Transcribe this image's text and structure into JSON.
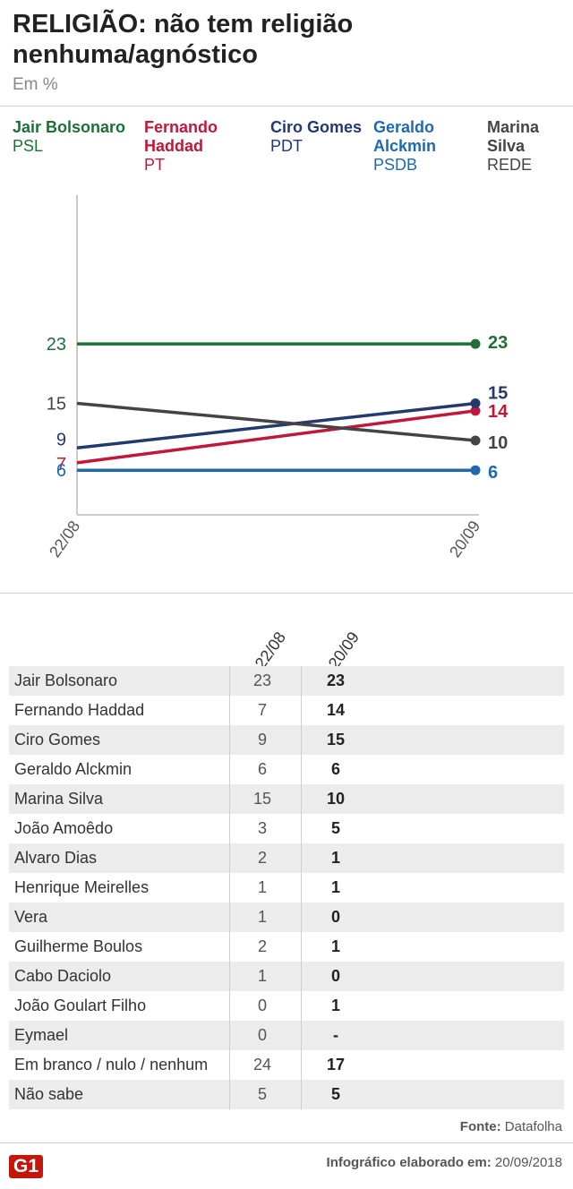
{
  "header": {
    "title": "RELIGIÃO: não tem religião nenhuma/agnóstico",
    "subtitle": "Em %"
  },
  "legend": [
    {
      "name": "Jair Bolsonaro",
      "party": "PSL",
      "color": "#1f6e35"
    },
    {
      "name": "Fernando Haddad",
      "party": "PT",
      "color": "#c0183a"
    },
    {
      "name": "Ciro Gomes",
      "party": "PDT",
      "color": "#223a70"
    },
    {
      "name": "Geraldo Alckmin",
      "party": "PSDB",
      "color": "#1f69b3"
    },
    {
      "name": "Marina Silva",
      "party": "REDE",
      "color": "#444444"
    }
  ],
  "chart_data": {
    "type": "line",
    "title": "RELIGIÃO: não tem religião nenhuma/agnóstico",
    "ylabel": "Em %",
    "x": [
      "22/08",
      "20/09"
    ],
    "ylim": [
      0,
      40
    ],
    "grid": false,
    "series": [
      {
        "name": "Jair Bolsonaro",
        "values": [
          23,
          23
        ],
        "color": "#1f6e35"
      },
      {
        "name": "Fernando Haddad",
        "values": [
          7,
          14
        ],
        "color": "#c0183a"
      },
      {
        "name": "Ciro Gomes",
        "values": [
          9,
          15
        ],
        "color": "#223a70"
      },
      {
        "name": "Geraldo Alckmin",
        "values": [
          6,
          6
        ],
        "color": "#1f69b3"
      },
      {
        "name": "Marina Silva",
        "values": [
          15,
          10
        ],
        "color": "#444444"
      }
    ]
  },
  "table": {
    "columns": [
      "22/08",
      "20/09"
    ],
    "rows": [
      {
        "name": "Jair Bolsonaro",
        "v1": "23",
        "v2": "23"
      },
      {
        "name": "Fernando Haddad",
        "v1": "7",
        "v2": "14"
      },
      {
        "name": "Ciro Gomes",
        "v1": "9",
        "v2": "15"
      },
      {
        "name": "Geraldo Alckmin",
        "v1": "6",
        "v2": "6"
      },
      {
        "name": "Marina Silva",
        "v1": "15",
        "v2": "10"
      },
      {
        "name": "João Amoêdo",
        "v1": "3",
        "v2": "5"
      },
      {
        "name": "Alvaro Dias",
        "v1": "2",
        "v2": "1"
      },
      {
        "name": "Henrique Meirelles",
        "v1": "1",
        "v2": "1"
      },
      {
        "name": "Vera",
        "v1": "1",
        "v2": "0"
      },
      {
        "name": "Guilherme Boulos",
        "v1": "2",
        "v2": "1"
      },
      {
        "name": "Cabo Daciolo",
        "v1": "1",
        "v2": "0"
      },
      {
        "name": "João Goulart Filho",
        "v1": "0",
        "v2": "1"
      },
      {
        "name": "Eymael",
        "v1": "0",
        "v2": "-"
      },
      {
        "name": "Em branco / nulo / nenhum",
        "v1": "24",
        "v2": "17"
      },
      {
        "name": "Não sabe",
        "v1": "5",
        "v2": "5"
      }
    ]
  },
  "footer": {
    "source_label": "Fonte:",
    "source_value": "Datafolha",
    "credit_label": "Infográfico elaborado em:",
    "credit_date": "20/09/2018",
    "logo": "G1"
  }
}
